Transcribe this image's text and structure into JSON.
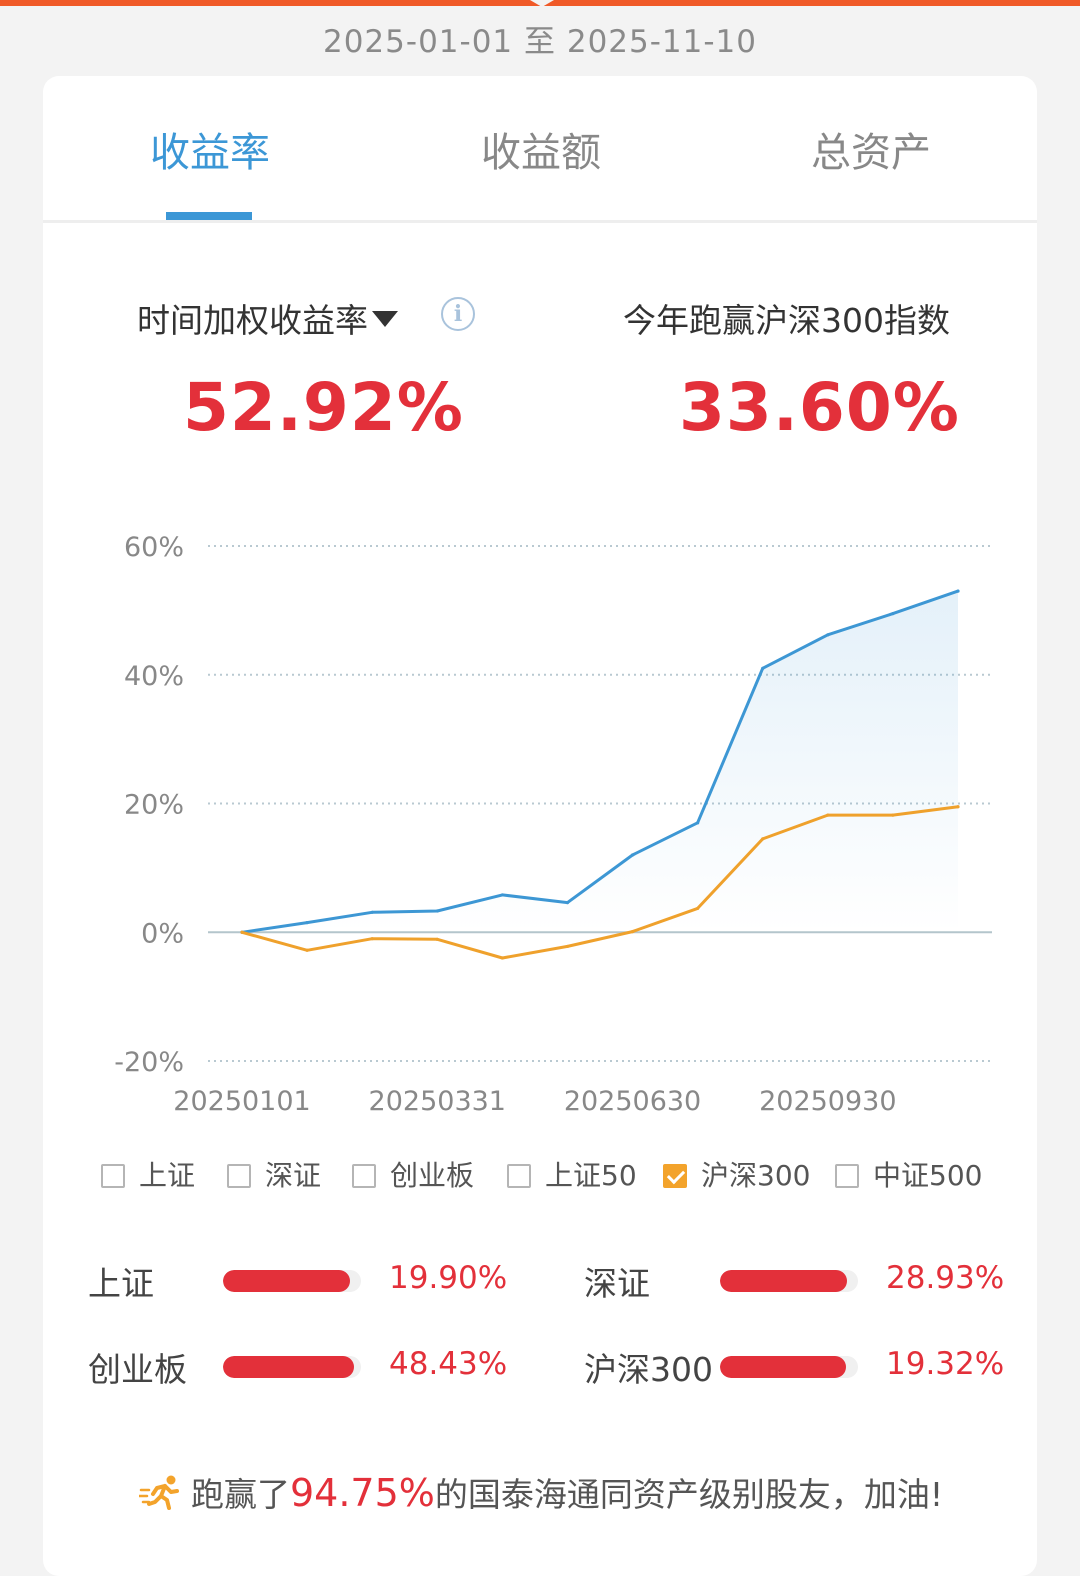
{
  "header": {
    "date_range": "2025-01-01 至 2025-11-10"
  },
  "tabs": [
    {
      "label": "收益率",
      "active": true
    },
    {
      "label": "收益额",
      "active": false
    },
    {
      "label": "总资产",
      "active": false
    }
  ],
  "metrics": {
    "left_label": "时间加权收益率",
    "left_value": "52.92%",
    "right_label": "今年跑赢沪深300指数",
    "right_value": "33.60%"
  },
  "chart_data": {
    "type": "line",
    "x_ticks": [
      "20250101",
      "20250331",
      "20250630",
      "20250930"
    ],
    "y_ticks": [
      "60%",
      "40%",
      "20%",
      "0%",
      "-20%"
    ],
    "ylim": [
      -20,
      60
    ],
    "grid": true,
    "series": [
      {
        "values": [
          0,
          1.5,
          3.1,
          3.3,
          5.8,
          4.6,
          12.0,
          17.0,
          41.0,
          46.2,
          49.5,
          53.0
        ],
        "color": "#3d97d4",
        "area_fill": true
      },
      {
        "name": "沪深300",
        "values": [
          0,
          -2.8,
          -1.0,
          -1.1,
          -4.0,
          -2.2,
          0.1,
          3.7,
          14.5,
          18.2,
          18.2,
          19.5
        ],
        "color": "#efa12c",
        "area_fill": false
      }
    ]
  },
  "legend": [
    {
      "label": "上证",
      "checked": false
    },
    {
      "label": "深证",
      "checked": false
    },
    {
      "label": "创业板",
      "checked": false
    },
    {
      "label": "上证50",
      "checked": false
    },
    {
      "label": "沪深300",
      "checked": true
    },
    {
      "label": "中证500",
      "checked": false
    }
  ],
  "indices": [
    {
      "name": "上证",
      "value": "19.90%",
      "level": 0.92
    },
    {
      "name": "深证",
      "value": "28.93%",
      "level": 0.92
    },
    {
      "name": "创业板",
      "value": "48.43%",
      "level": 0.95
    },
    {
      "name": "沪深300",
      "value": "19.32%",
      "level": 0.91
    }
  ],
  "footer": {
    "prefix": "跑赢了",
    "highlight": "94.75%",
    "suffix": "的国泰海通同资产级别股友，加油!"
  },
  "colors": {
    "accent": "#3c97d6",
    "red": "#e3303a",
    "orange": "#f3a32b",
    "top_bar": "#f05a28"
  },
  "icons": [
    "info-icon",
    "dropdown-caret-icon",
    "checkbox-icon",
    "runner-icon"
  ]
}
